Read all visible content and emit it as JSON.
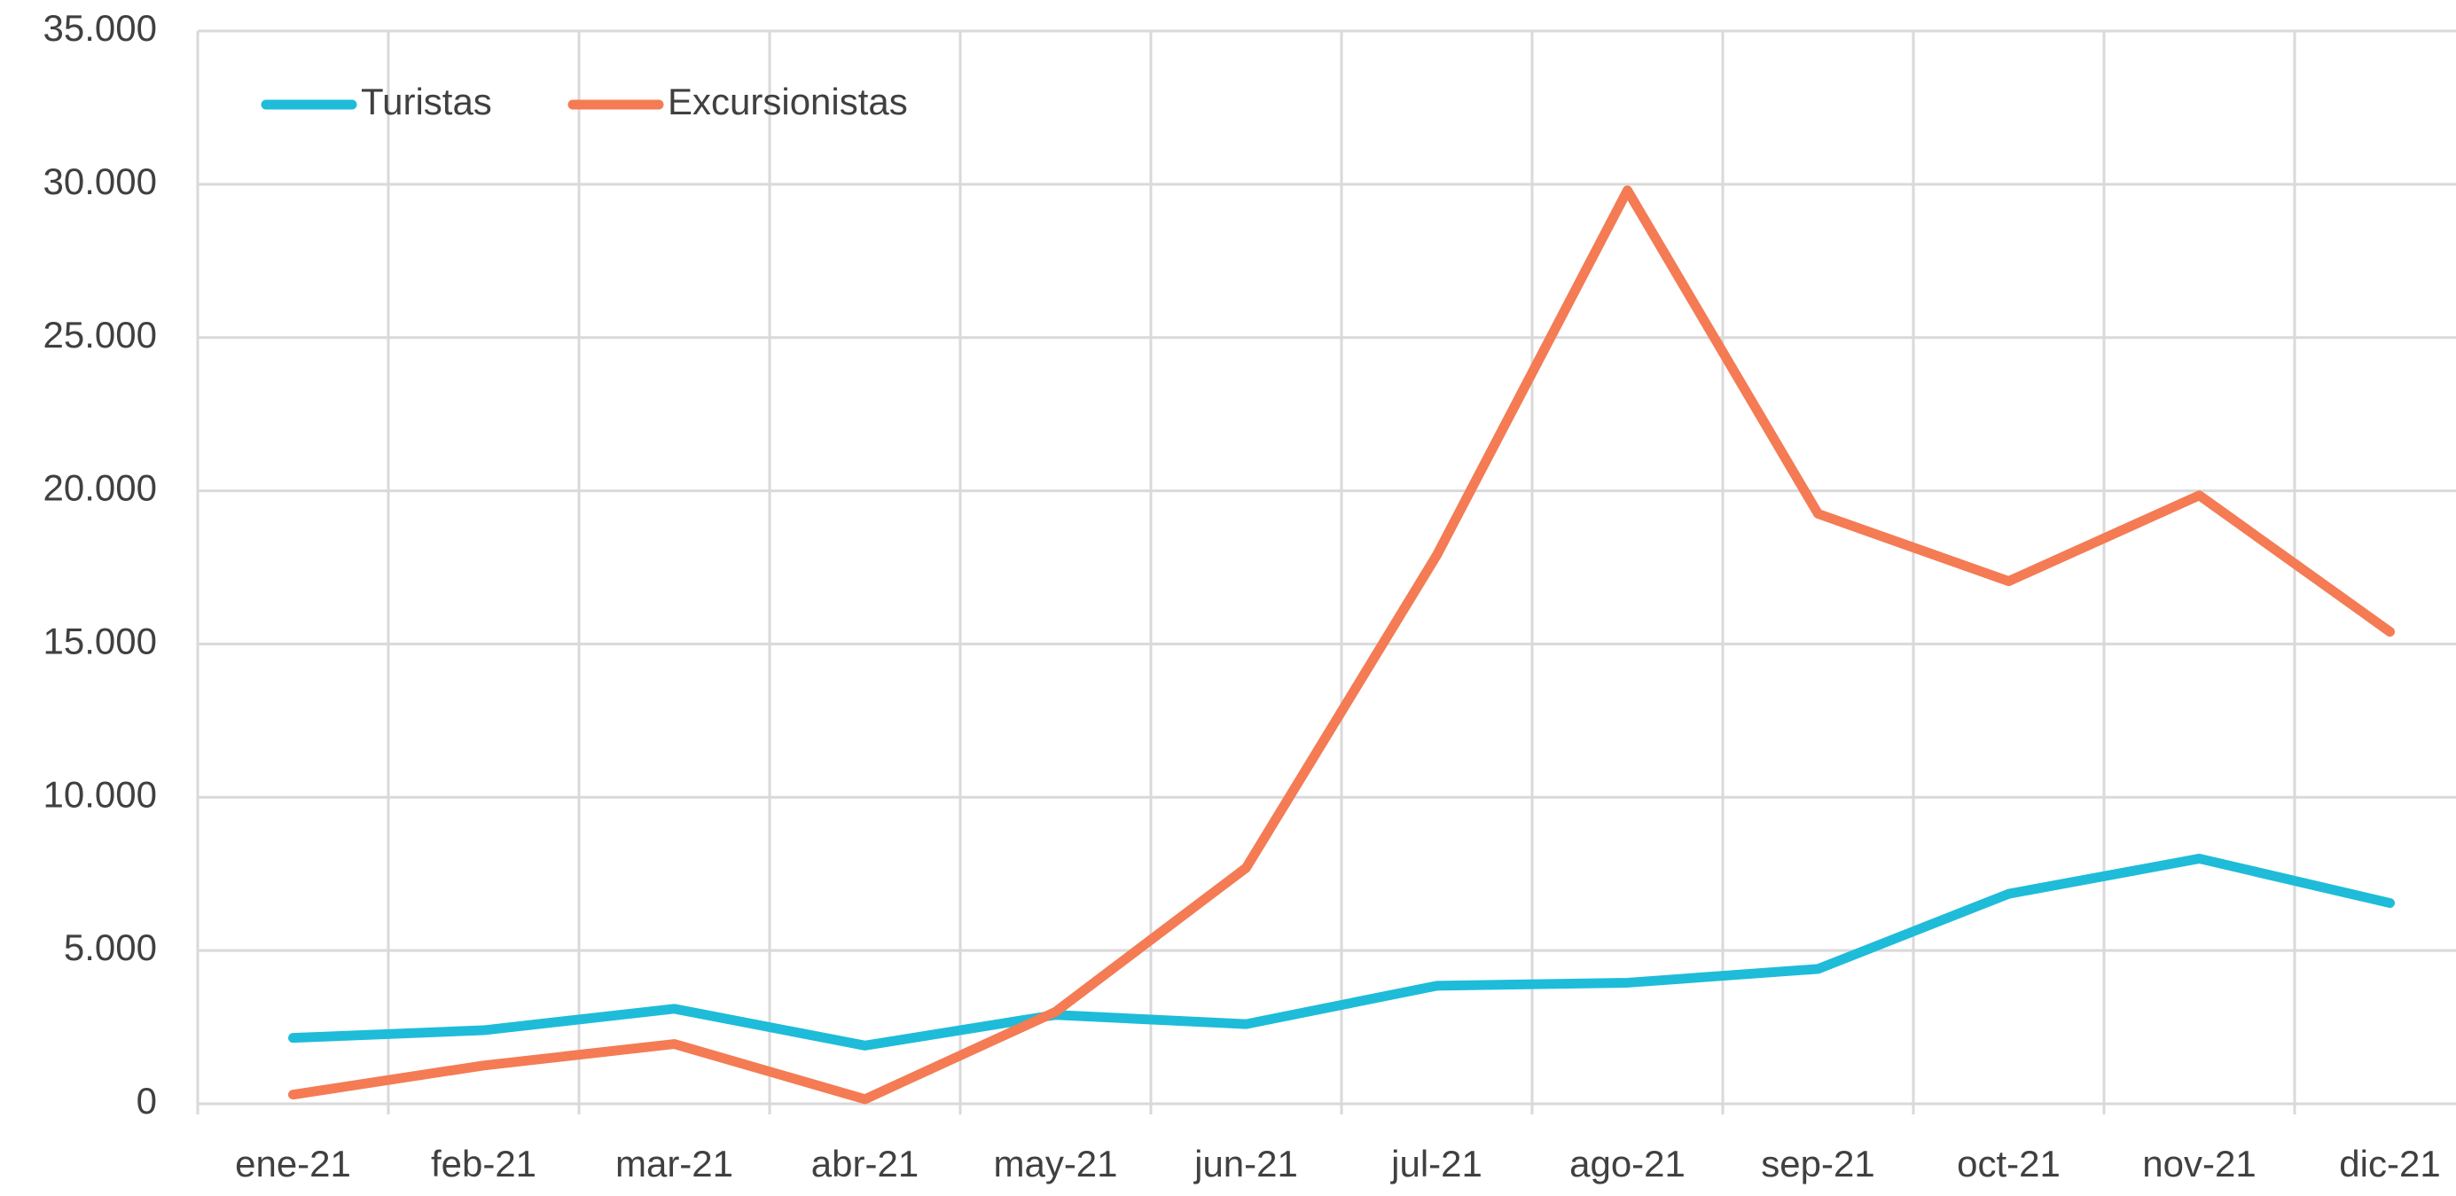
{
  "chart_data": {
    "type": "line",
    "categories": [
      "ene-21",
      "feb-21",
      "mar-21",
      "abr-21",
      "may-21",
      "jun-21",
      "jul-21",
      "ago-21",
      "sep-21",
      "oct-21",
      "nov-21",
      "dic-21"
    ],
    "series": [
      {
        "name": "Turistas",
        "color": "#1ebcd8",
        "values": [
          2150,
          2400,
          3100,
          1900,
          2900,
          2600,
          3850,
          3950,
          4400,
          6850,
          8000,
          6550
        ]
      },
      {
        "name": "Excursionistas",
        "color": "#f47b54",
        "values": [
          300,
          1250,
          1950,
          150,
          3000,
          7700,
          17900,
          29800,
          19250,
          17050,
          19850,
          15400
        ]
      }
    ],
    "ylim": [
      0,
      35000
    ],
    "yticks": [
      0,
      {
        "value": 5000,
        "label": "5.000"
      },
      {
        "value": 10000,
        "label": "10.000"
      },
      {
        "value": 15000,
        "label": "15.000"
      },
      {
        "value": 20000,
        "label": "20.000"
      },
      {
        "value": 25000,
        "label": "25.000"
      },
      {
        "value": 30000,
        "label": "30.000"
      },
      {
        "value": 35000,
        "label": "35.000"
      }
    ],
    "grid": true,
    "legend": "top-left"
  }
}
